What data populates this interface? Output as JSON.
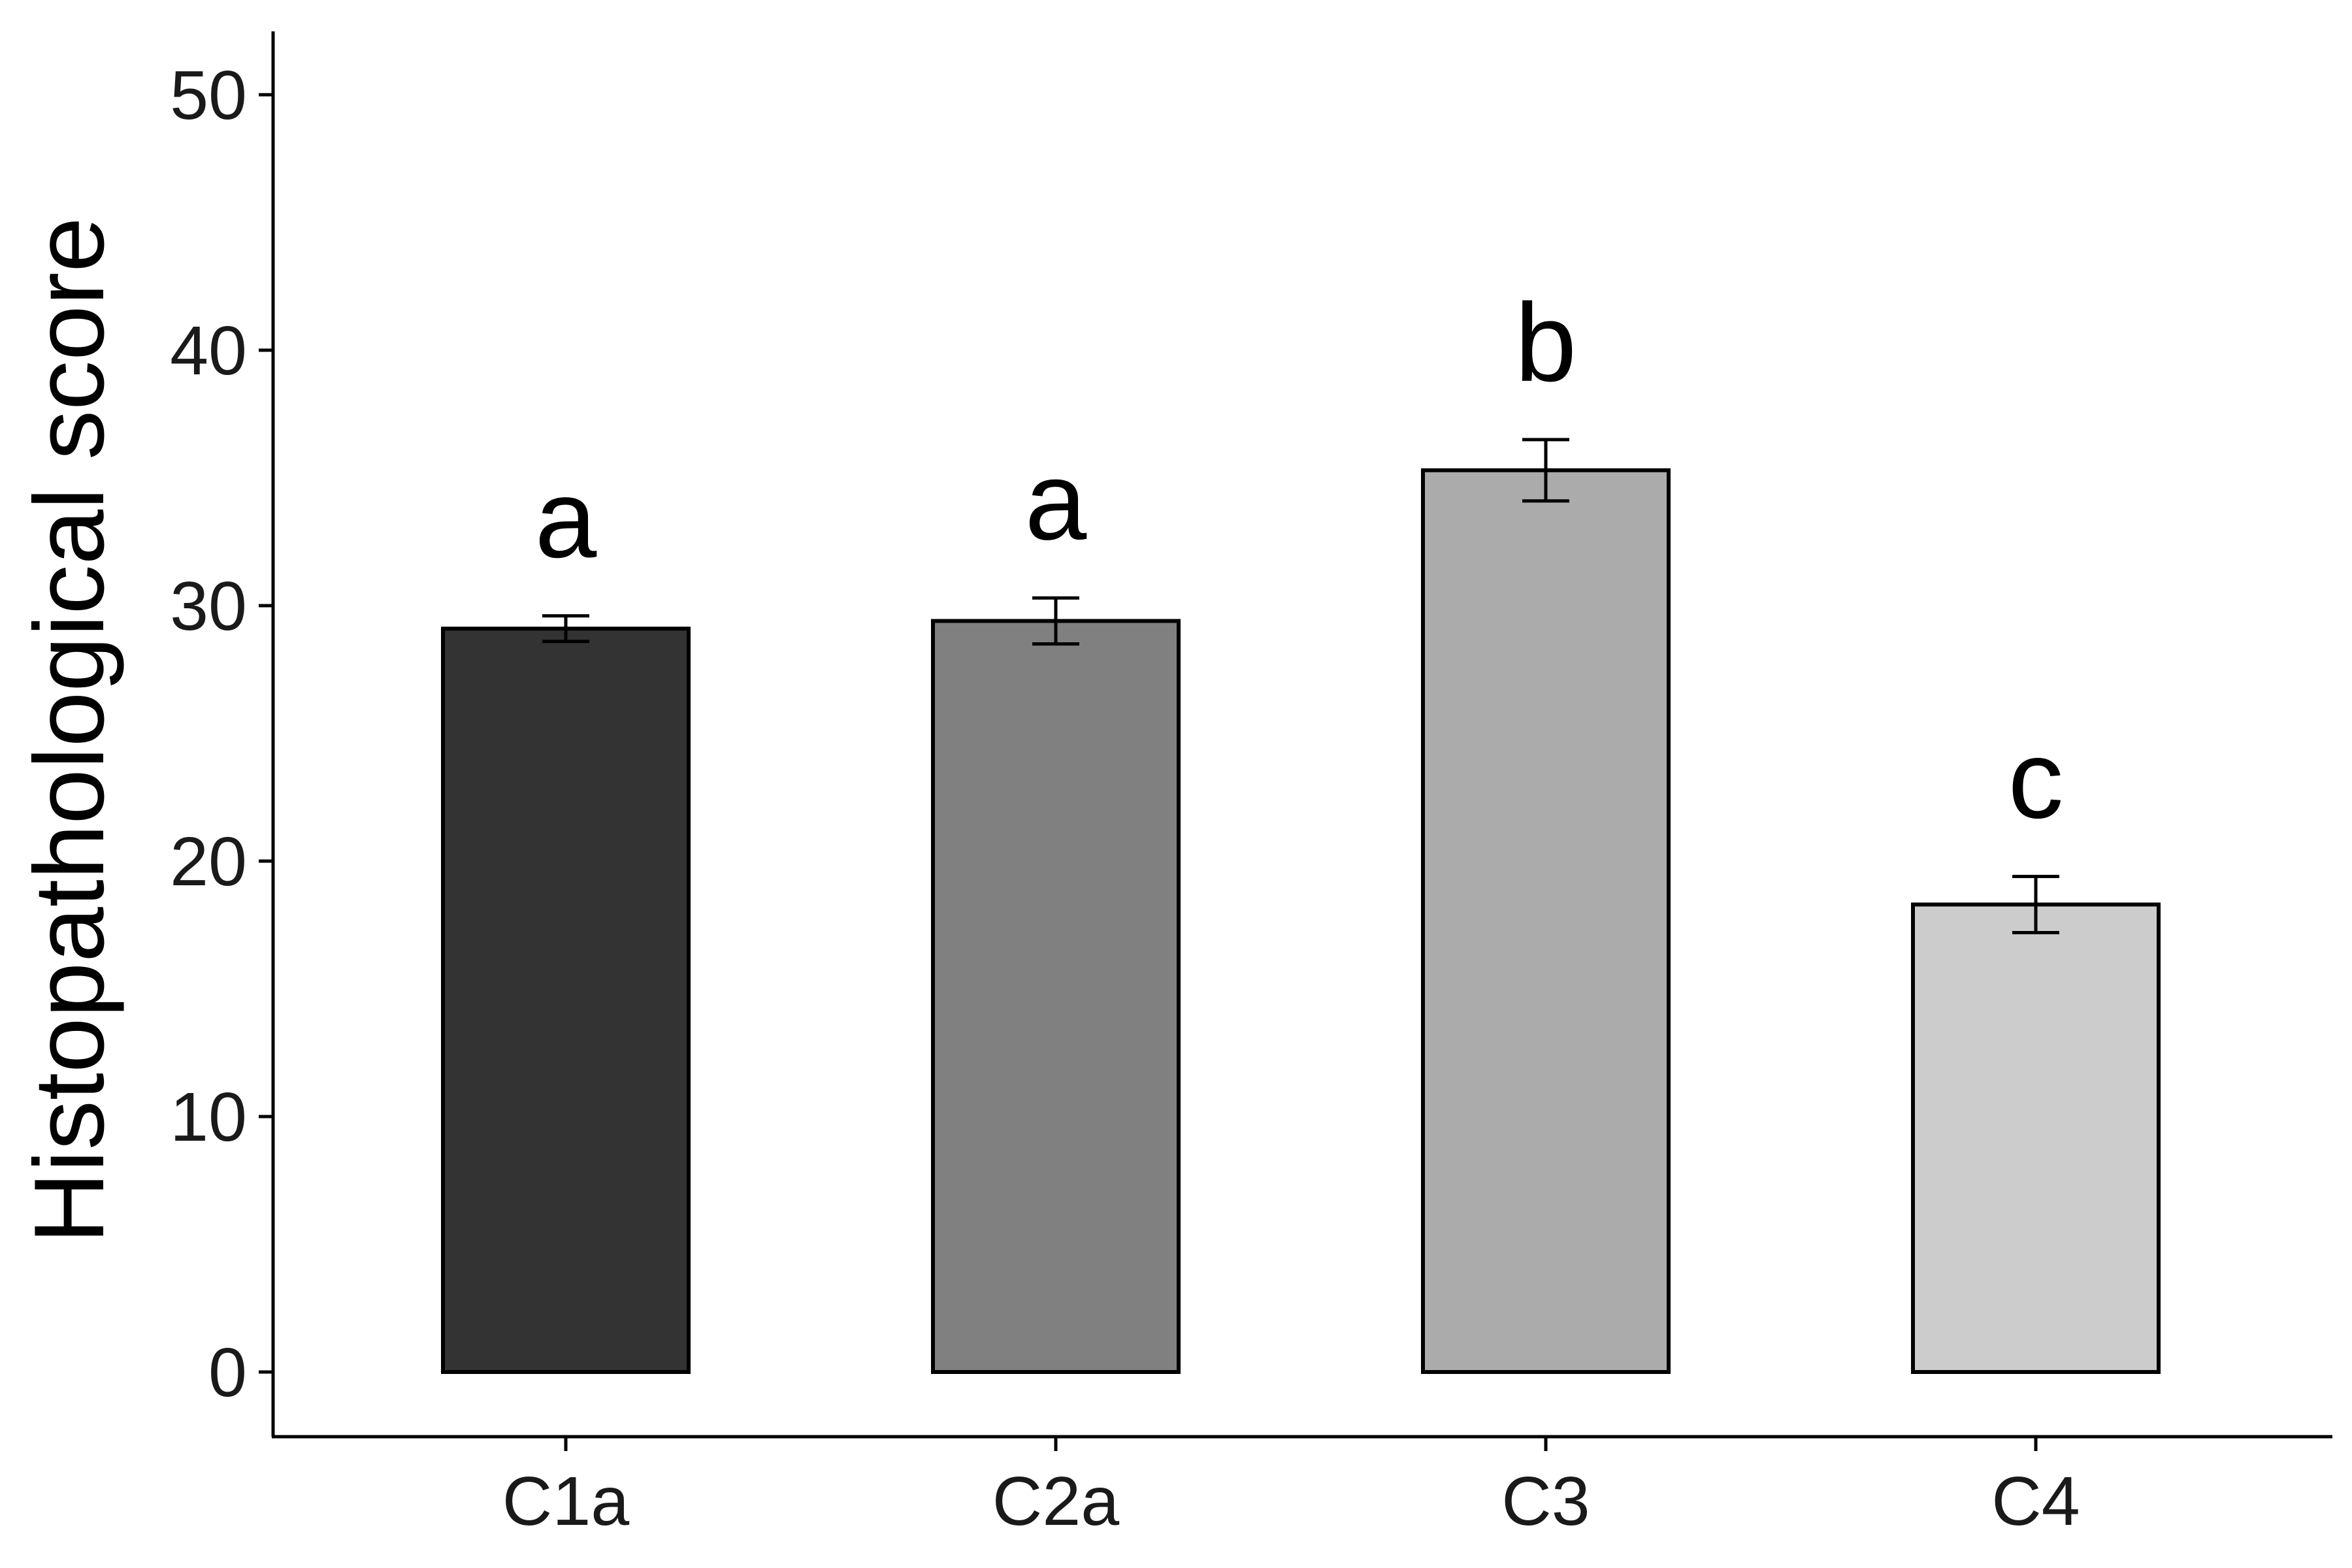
{
  "chart_data": {
    "type": "bar",
    "title": "",
    "xlabel": "",
    "ylabel": "Histopathological score",
    "ylim": [
      0,
      52
    ],
    "yticks": [
      0,
      10,
      20,
      30,
      40,
      50
    ],
    "grid": false,
    "legend": "none",
    "categories": [
      "C1a",
      "C2a",
      "C3",
      "C4"
    ],
    "values": [
      29.1,
      29.4,
      35.3,
      18.3
    ],
    "errors": [
      0.5,
      0.9,
      1.2,
      1.1
    ],
    "letters": [
      "a",
      "a",
      "b",
      "c"
    ],
    "colors": [
      "#333333",
      "#808080",
      "#ababab",
      "#cccccc"
    ]
  }
}
